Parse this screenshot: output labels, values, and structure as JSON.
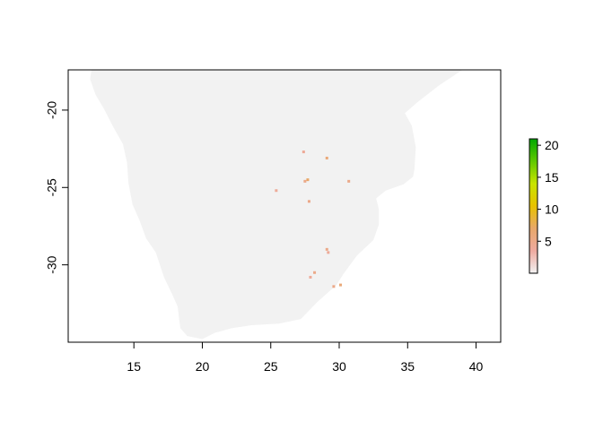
{
  "chart_data": {
    "type": "heatmap",
    "title": "",
    "xlabel": "",
    "ylabel": "",
    "xlim": [
      10.2,
      41.8
    ],
    "ylim": [
      -35.0,
      -17.4
    ],
    "x_ticks": [
      15,
      20,
      25,
      30,
      35,
      40
    ],
    "y_ticks": [
      -20,
      -25,
      -30
    ],
    "land_color": "#f2f2f2",
    "grid": false,
    "legend": {
      "placement": "right",
      "range": [
        0,
        21
      ],
      "ticks": [
        5,
        10,
        15,
        20
      ],
      "palette": [
        "#f2f2f2",
        "#eeaaa0",
        "#e8a86a",
        "#e8c200",
        "#c8e400",
        "#60c800",
        "#00a800"
      ]
    },
    "landmass_outline": [
      [
        11.9,
        -17.4
      ],
      [
        39.0,
        -17.4
      ],
      [
        37.3,
        -18.4
      ],
      [
        35.7,
        -19.5
      ],
      [
        34.8,
        -20.2
      ],
      [
        35.3,
        -21.0
      ],
      [
        35.6,
        -22.4
      ],
      [
        35.5,
        -23.8
      ],
      [
        35.4,
        -24.3
      ],
      [
        34.7,
        -24.8
      ],
      [
        33.4,
        -25.2
      ],
      [
        32.7,
        -25.7
      ],
      [
        32.9,
        -26.4
      ],
      [
        32.9,
        -27.4
      ],
      [
        32.5,
        -28.4
      ],
      [
        31.3,
        -29.4
      ],
      [
        30.3,
        -30.6
      ],
      [
        29.8,
        -31.3
      ],
      [
        28.4,
        -32.4
      ],
      [
        27.2,
        -33.5
      ],
      [
        25.6,
        -33.8
      ],
      [
        23.6,
        -33.9
      ],
      [
        22.1,
        -34.1
      ],
      [
        20.9,
        -34.4
      ],
      [
        20.0,
        -34.8
      ],
      [
        18.9,
        -34.6
      ],
      [
        18.4,
        -34.1
      ],
      [
        18.3,
        -33.5
      ],
      [
        18.2,
        -32.7
      ],
      [
        17.8,
        -31.9
      ],
      [
        17.2,
        -30.8
      ],
      [
        16.6,
        -29.2
      ],
      [
        15.9,
        -28.3
      ],
      [
        15.4,
        -27.1
      ],
      [
        14.9,
        -26.1
      ],
      [
        14.6,
        -24.7
      ],
      [
        14.5,
        -23.4
      ],
      [
        14.2,
        -22.2
      ],
      [
        13.5,
        -21.1
      ],
      [
        12.8,
        -19.9
      ],
      [
        12.2,
        -19.0
      ],
      [
        11.8,
        -18.0
      ]
    ],
    "points": [
      [
        29.1,
        -23.1,
        3
      ],
      [
        27.7,
        -24.5,
        4
      ],
      [
        27.5,
        -24.6,
        2
      ],
      [
        30.7,
        -24.6,
        2
      ],
      [
        27.4,
        -22.7,
        1
      ],
      [
        27.8,
        -25.9,
        2
      ],
      [
        29.1,
        -29.0,
        2
      ],
      [
        29.2,
        -29.2,
        1
      ],
      [
        28.2,
        -30.5,
        2
      ],
      [
        29.6,
        -31.4,
        2
      ],
      [
        30.1,
        -31.3,
        3
      ],
      [
        27.9,
        -30.8,
        1
      ],
      [
        25.4,
        -25.2,
        1
      ]
    ]
  }
}
